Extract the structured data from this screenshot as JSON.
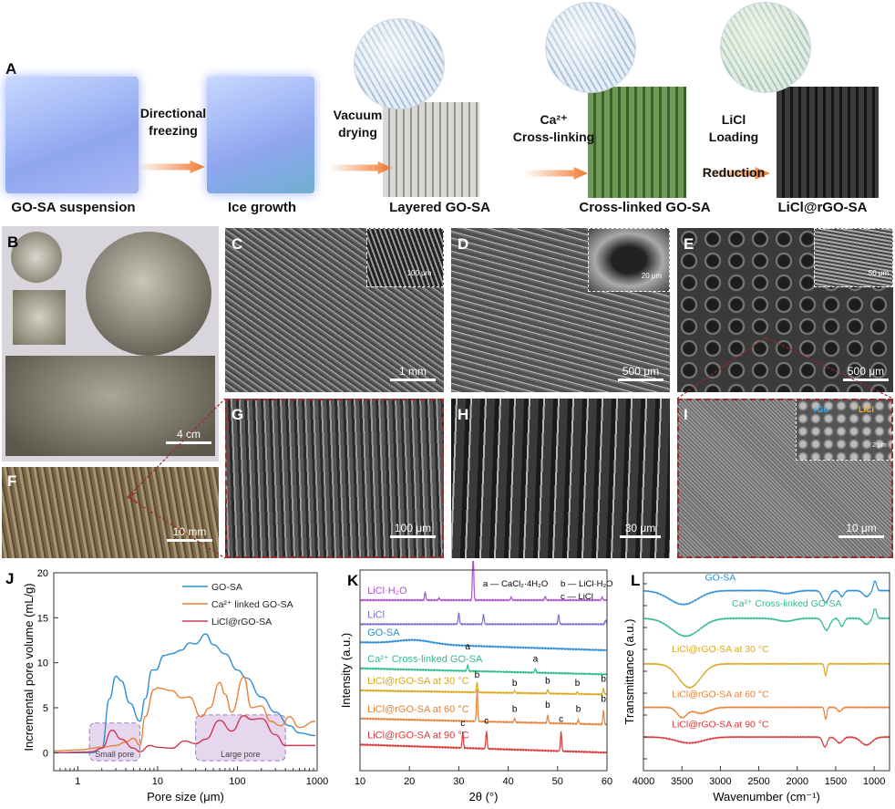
{
  "panels": {
    "A": "A",
    "B": "B",
    "C": "C",
    "D": "D",
    "E": "E",
    "F": "F",
    "G": "G",
    "H": "H",
    "I": "I",
    "J": "J",
    "K": "K",
    "L": "L"
  },
  "schematic": {
    "stages": [
      "GO-SA suspension",
      "Ice growth",
      "Layered GO-SA",
      "Cross-linked GO-SA",
      "LiCl@rGO-SA"
    ],
    "steps": [
      {
        "line1": "Directional",
        "line2": "freezing"
      },
      {
        "line1": "Vacuum",
        "line2": "drying"
      },
      {
        "line1": "Ca²⁺",
        "line2": "Cross-linking"
      },
      {
        "line1": "LiCl",
        "line2": "Loading",
        "line3": "Reduction"
      }
    ],
    "arrow_color": "#f07a30"
  },
  "images": {
    "B": {
      "scale": "4 cm"
    },
    "C": {
      "scale": "1 mm",
      "inset_scale": "100 μm"
    },
    "D": {
      "scale": "500 μm",
      "inset_scale": "20 μm"
    },
    "E": {
      "scale": "500 μm",
      "inset_scale": "50 μm"
    },
    "F": {
      "scale": "10 mm"
    },
    "G": {
      "scale": "100 μm"
    },
    "H": {
      "scale": "30 μm"
    },
    "I": {
      "scale": "10 μm",
      "inset_scale": "2 μm",
      "inset_labels": [
        "rGo",
        "LiCl"
      ]
    }
  },
  "chart_data": [
    {
      "id": "J",
      "type": "line",
      "xlabel": "Pore size (μm)",
      "ylabel": "Incremental pore volume (mL/g)",
      "xscale": "log",
      "xlim": [
        0.5,
        1000
      ],
      "ylim": [
        -2,
        20
      ],
      "xticks": [
        "1",
        "10",
        "100",
        "1000"
      ],
      "xtick_values": [
        1,
        10,
        100,
        1000
      ],
      "yticks": [
        "0",
        "5",
        "10",
        "15",
        "20"
      ],
      "ytick_values": [
        0,
        5,
        10,
        15,
        20
      ],
      "legend": "top-right",
      "series": [
        {
          "name": "GO-SA",
          "color": "#2e8fd6",
          "points": [
            [
              0.5,
              0
            ],
            [
              1.5,
              0
            ],
            [
              2,
              0.5
            ],
            [
              2.5,
              6
            ],
            [
              3,
              8.5
            ],
            [
              3.5,
              8
            ],
            [
              4.5,
              5.5
            ],
            [
              6,
              3.5
            ],
            [
              7,
              6
            ],
            [
              8.5,
              9.2
            ],
            [
              9.5,
              9.2
            ],
            [
              12,
              10.8
            ],
            [
              15,
              11
            ],
            [
              20,
              11.4
            ],
            [
              25,
              12.2
            ],
            [
              30,
              12.1
            ],
            [
              40,
              13.2
            ],
            [
              50,
              12
            ],
            [
              70,
              11
            ],
            [
              100,
              9.2
            ],
            [
              130,
              8.3
            ],
            [
              200,
              6.2
            ],
            [
              300,
              4.5
            ],
            [
              450,
              3
            ],
            [
              600,
              2.2
            ],
            [
              950,
              1.9
            ]
          ]
        },
        {
          "name": "Ca²⁺ linked GO-SA",
          "color": "#e8823a",
          "points": [
            [
              0.5,
              0.2
            ],
            [
              1,
              0.3
            ],
            [
              2,
              0.6
            ],
            [
              3,
              0.8
            ],
            [
              4,
              1.2
            ],
            [
              5,
              1.6
            ],
            [
              6,
              0.8
            ],
            [
              7,
              4
            ],
            [
              9,
              7
            ],
            [
              10,
              7.2
            ],
            [
              15,
              6.9
            ],
            [
              20,
              6.1
            ],
            [
              25,
              6.2
            ],
            [
              35,
              4
            ],
            [
              45,
              5
            ],
            [
              60,
              7.8
            ],
            [
              70,
              6.5
            ],
            [
              85,
              4.5
            ],
            [
              120,
              8.4
            ],
            [
              150,
              5
            ],
            [
              200,
              5.2
            ],
            [
              260,
              3.5
            ],
            [
              350,
              3
            ],
            [
              450,
              4
            ],
            [
              600,
              2.8
            ],
            [
              950,
              3.5
            ]
          ]
        },
        {
          "name": "LiCl@rGO-SA",
          "color": "#cc3a55",
          "points": [
            [
              0.5,
              0
            ],
            [
              1.5,
              0.1
            ],
            [
              2,
              0.5
            ],
            [
              2.7,
              2.5
            ],
            [
              3.5,
              1.5
            ],
            [
              5,
              0.5
            ],
            [
              6,
              0.1
            ],
            [
              8,
              0.8
            ],
            [
              10,
              0.6
            ],
            [
              15,
              0.5
            ],
            [
              22,
              1.3
            ],
            [
              30,
              1
            ],
            [
              40,
              1.5
            ],
            [
              60,
              3.6
            ],
            [
              85,
              2.4
            ],
            [
              120,
              4.1
            ],
            [
              150,
              3.7
            ],
            [
              200,
              3.8
            ],
            [
              300,
              2
            ],
            [
              400,
              0.8
            ],
            [
              950,
              0.8
            ]
          ]
        }
      ],
      "regions": [
        {
          "label": "Small pore",
          "x": [
            1.4,
            6
          ],
          "y": [
            -0.9,
            3.3
          ]
        },
        {
          "label": "Large pore",
          "x": [
            30,
            400
          ],
          "y": [
            -0.9,
            4.2
          ]
        }
      ]
    },
    {
      "id": "K",
      "type": "line",
      "xlabel": "2θ (°)",
      "ylabel": "Intensity (a.u.)",
      "xlim": [
        10,
        60
      ],
      "ylim": [
        0,
        100
      ],
      "xticks": [
        "10",
        "20",
        "30",
        "40",
        "50",
        "60"
      ],
      "xtick_values": [
        10,
        20,
        30,
        40,
        50,
        60
      ],
      "key": [
        "a — CaCl₂·4H₂O",
        "b — LiCl·H₂O",
        "c — LiCl"
      ],
      "series": [
        {
          "name": "LiCl·H₂O",
          "color": "#b050d0",
          "baseline": [
            85,
            85
          ],
          "peaks": [
            [
              23.2,
              4
            ],
            [
              26,
              1
            ],
            [
              32.9,
              23
            ],
            [
              40.6,
              1.5
            ],
            [
              47.5,
              2
            ],
            [
              59,
              1.5
            ]
          ],
          "marks": []
        },
        {
          "name": "LiCl",
          "color": "#7b6fd0",
          "baseline": [
            73,
            73
          ],
          "peaks": [
            [
              30,
              6
            ],
            [
              35,
              5
            ],
            [
              50.2,
              5
            ],
            [
              59.7,
              2
            ]
          ],
          "marks": []
        },
        {
          "name": "GO-SA",
          "color": "#2e8fd6",
          "baseline": [
            64,
            60
          ],
          "hump": [
            21,
            2
          ],
          "peaks": [],
          "marks": []
        },
        {
          "name": "Ca²⁺ Cross-linked GO-SA",
          "color": "#2ebd86",
          "baseline": [
            51,
            48
          ],
          "peaks": [
            [
              31.8,
              3
            ],
            [
              45.5,
              2
            ]
          ],
          "marks": [
            [
              31.8,
              "a"
            ],
            [
              45.5,
              "a"
            ]
          ]
        },
        {
          "name": "LiCl@rGO-SA at 30 °C",
          "color": "#d9a820",
          "baseline": [
            40,
            38
          ],
          "peaks": [
            [
              33.7,
              5
            ],
            [
              41.3,
              1
            ],
            [
              48,
              2
            ],
            [
              54,
              1
            ],
            [
              59.3,
              3
            ]
          ],
          "marks": [
            [
              33.7,
              "b"
            ],
            [
              41.3,
              "b"
            ],
            [
              48,
              "b"
            ],
            [
              54,
              "b"
            ],
            [
              59.3,
              "b"
            ]
          ]
        },
        {
          "name": "LiCl@rGO-SA at 60 °C",
          "color": "#e8823a",
          "baseline": [
            26,
            23
          ],
          "peaks": [
            [
              33.7,
              16
            ],
            [
              41.3,
              2
            ],
            [
              48,
              4
            ],
            [
              54.2,
              2
            ],
            [
              59.3,
              7
            ]
          ],
          "marks": [
            [
              41.3,
              "b"
            ],
            [
              48,
              "b"
            ],
            [
              54.2,
              "b"
            ],
            [
              59.3,
              "b"
            ]
          ]
        },
        {
          "name": "LiCl@rGO-SA at 90 °C",
          "color": "#d83a3a",
          "baseline": [
            13,
            9
          ],
          "peaks": [
            [
              30.8,
              8
            ],
            [
              35.6,
              9
            ],
            [
              50.7,
              10
            ]
          ],
          "marks": [
            [
              30.8,
              "c"
            ],
            [
              35.6,
              "c"
            ],
            [
              50.7,
              "c"
            ]
          ]
        }
      ]
    },
    {
      "id": "L",
      "type": "line",
      "xlabel": "Wavenumber (cm⁻¹)",
      "ylabel": "Transmittance (a.u.)",
      "xlim": [
        4000,
        800
      ],
      "ylim": [
        0,
        100
      ],
      "xticks": [
        "4000",
        "3500",
        "3000",
        "2500",
        "2000",
        "1500",
        "1000"
      ],
      "xtick_values": [
        4000,
        3500,
        3000,
        2500,
        2000,
        1500,
        1000
      ],
      "series": [
        {
          "name": "GO-SA",
          "color": "#2e8fd6",
          "baseline": 91,
          "bands": [
            [
              3480,
              7,
              260
            ],
            [
              2150,
              1.5,
              150
            ],
            [
              1630,
              6,
              60
            ],
            [
              1420,
              3,
              40
            ],
            [
              1100,
              3,
              60
            ],
            [
              990,
              -5,
              30
            ]
          ]
        },
        {
          "name": "Ca²⁺ Cross-linked GO-SA",
          "color": "#2ebd86",
          "baseline": 77,
          "bands": [
            [
              3450,
              9,
              260
            ],
            [
              2150,
              1.5,
              150
            ],
            [
              1620,
              6,
              60
            ],
            [
              1420,
              4,
              40
            ],
            [
              1100,
              3,
              60
            ],
            [
              990,
              -5,
              30
            ]
          ]
        },
        {
          "name": "LiCl@rGO-SA at 30 °C",
          "color": "#d9a820",
          "baseline": 54,
          "bands": [
            [
              3400,
              12,
              200
            ],
            [
              1630,
              6,
              20
            ]
          ]
        },
        {
          "name": "LiCl@rGO-SA at 60 °C",
          "color": "#e8823a",
          "baseline": 32,
          "bands": [
            [
              3500,
              5,
              90
            ],
            [
              3250,
              3,
              150
            ],
            [
              1630,
              6,
              20
            ],
            [
              1450,
              2,
              40
            ]
          ]
        },
        {
          "name": "LiCl@rGO-SA at 90 °C",
          "color": "#d83a3a",
          "baseline": 17,
          "bands": [
            [
              3400,
              3,
              250
            ],
            [
              1640,
              5,
              40
            ],
            [
              1450,
              3,
              60
            ],
            [
              1100,
              4,
              100
            ]
          ]
        }
      ]
    }
  ]
}
